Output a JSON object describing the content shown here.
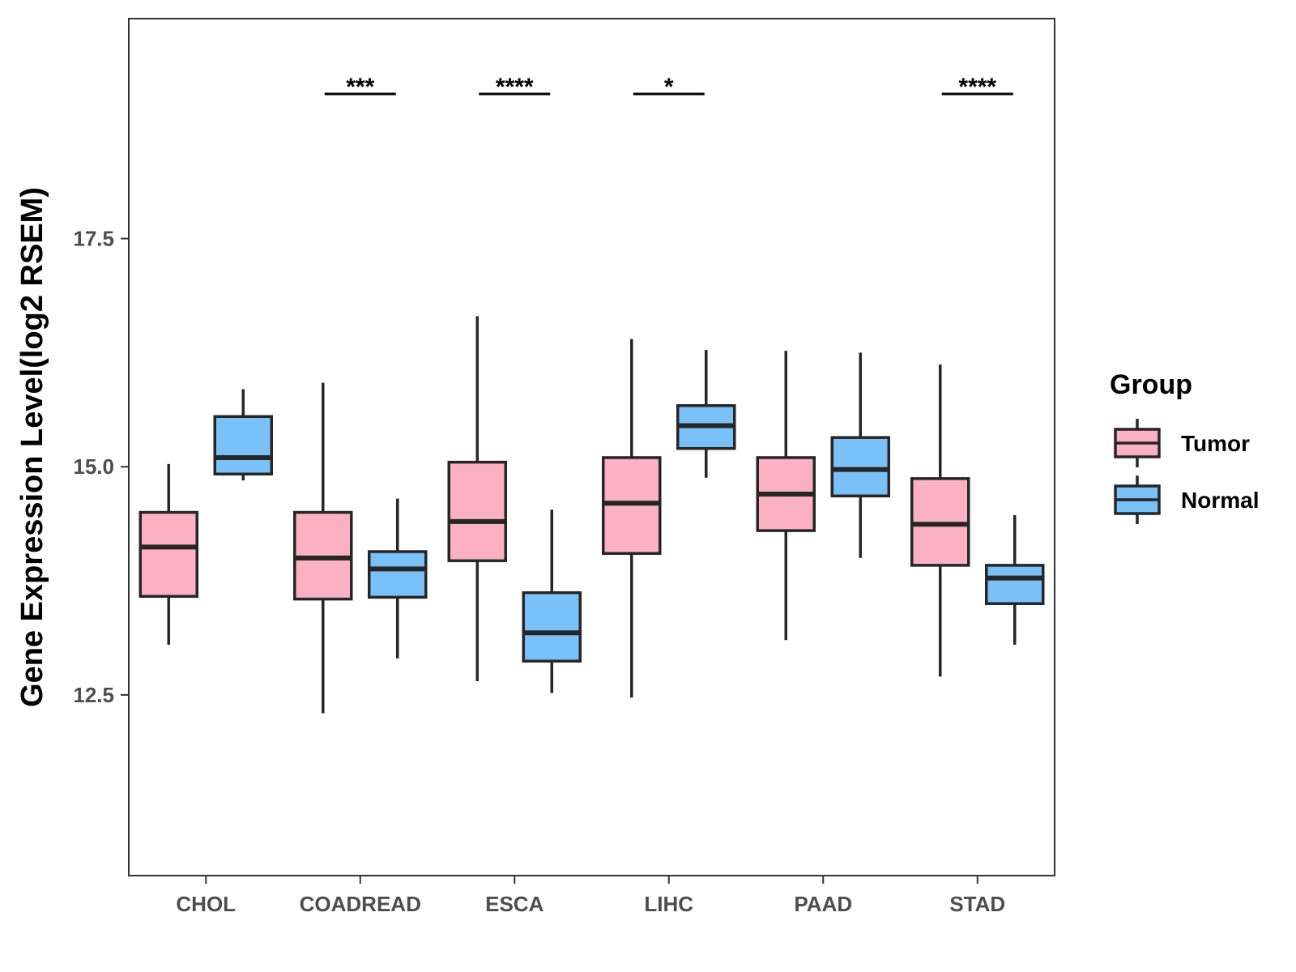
{
  "chart_data": {
    "type": "boxplot",
    "title": "",
    "xlabel": "",
    "ylabel": "Gene Expression Level(log2 RSEM)",
    "ylim": [
      10.5,
      19.9
    ],
    "yticks": [
      12.5,
      15.0,
      17.5
    ],
    "ytick_labels": [
      "12.5",
      "15.0",
      "17.5"
    ],
    "grid": false,
    "legend_position": "right",
    "legend_title": "Group",
    "categories": [
      "CHOL",
      "COADREAD",
      "ESCA",
      "LIHC",
      "PAAD",
      "STAD"
    ],
    "series": [
      {
        "name": "Tumor",
        "color": "#fbb1c3",
        "boxes": [
          {
            "min": 13.05,
            "q1": 13.58,
            "median": 14.12,
            "q3": 14.5,
            "max": 15.03
          },
          {
            "min": 12.3,
            "q1": 13.55,
            "median": 14.0,
            "q3": 14.5,
            "max": 15.92
          },
          {
            "min": 12.65,
            "q1": 13.97,
            "median": 14.4,
            "q3": 15.05,
            "max": 16.65
          },
          {
            "min": 12.47,
            "q1": 14.05,
            "median": 14.6,
            "q3": 15.1,
            "max": 16.4
          },
          {
            "min": 13.1,
            "q1": 14.3,
            "median": 14.7,
            "q3": 15.1,
            "max": 16.27
          },
          {
            "min": 12.7,
            "q1": 13.92,
            "median": 14.37,
            "q3": 14.87,
            "max": 16.12
          }
        ]
      },
      {
        "name": "Normal",
        "color": "#79c1f8",
        "boxes": [
          {
            "min": 14.85,
            "q1": 14.92,
            "median": 15.1,
            "q3": 15.55,
            "max": 15.85
          },
          {
            "min": 12.9,
            "q1": 13.57,
            "median": 13.88,
            "q3": 14.07,
            "max": 14.65
          },
          {
            "min": 12.52,
            "q1": 12.87,
            "median": 13.18,
            "q3": 13.62,
            "max": 14.53
          },
          {
            "min": 14.88,
            "q1": 15.2,
            "median": 15.45,
            "q3": 15.67,
            "max": 16.28
          },
          {
            "min": 14.0,
            "q1": 14.68,
            "median": 14.97,
            "q3": 15.32,
            "max": 16.25
          },
          {
            "min": 13.05,
            "q1": 13.5,
            "median": 13.78,
            "q3": 13.92,
            "max": 14.47
          }
        ]
      }
    ],
    "significance": [
      {
        "category": "COADREAD",
        "label": "***"
      },
      {
        "category": "ESCA",
        "label": "****"
      },
      {
        "category": "LIHC",
        "label": "*"
      },
      {
        "category": "STAD",
        "label": "****"
      }
    ],
    "significance_level": 19.2
  }
}
